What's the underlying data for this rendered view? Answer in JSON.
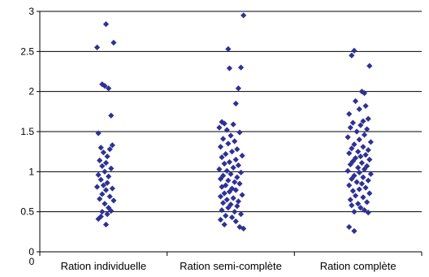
{
  "chart_data": {
    "type": "scatter",
    "title": "",
    "xlabel": "",
    "ylabel": "",
    "ylim": [
      0,
      3
    ],
    "y_ticks": [
      "0",
      "0.5",
      "1",
      "1.5",
      "2",
      "2.5",
      "3"
    ],
    "x_origin_label": "0",
    "categories": [
      "Ration individuelle",
      "Ration semi-complète",
      "Ration complète"
    ],
    "grid": true,
    "legend": "none",
    "marker_color": "#2E3192",
    "series": [
      {
        "category": "Ration individuelle",
        "points": [
          [
            1.02,
            2.84
          ],
          [
            1.08,
            2.61
          ],
          [
            0.95,
            2.55
          ],
          [
            0.99,
            2.09
          ],
          [
            1.01,
            2.07
          ],
          [
            1.04,
            2.04
          ],
          [
            1.06,
            1.7
          ],
          [
            0.96,
            1.48
          ],
          [
            1.07,
            1.33
          ],
          [
            0.98,
            1.3
          ],
          [
            1.05,
            1.28
          ],
          [
            1.0,
            1.24
          ],
          [
            1.03,
            1.19
          ],
          [
            0.97,
            1.14
          ],
          [
            1.02,
            1.11
          ],
          [
            0.99,
            1.07
          ],
          [
            1.06,
            1.04
          ],
          [
            1.01,
            1.0
          ],
          [
            0.96,
            0.96
          ],
          [
            1.04,
            0.94
          ],
          [
            0.98,
            0.9
          ],
          [
            1.03,
            0.86
          ],
          [
            1.0,
            0.83
          ],
          [
            0.95,
            0.81
          ],
          [
            1.07,
            0.79
          ],
          [
            1.02,
            0.77
          ],
          [
            0.99,
            0.72
          ],
          [
            1.05,
            0.69
          ],
          [
            0.97,
            0.66
          ],
          [
            1.08,
            0.64
          ],
          [
            1.01,
            0.6
          ],
          [
            1.04,
            0.55
          ],
          [
            1.06,
            0.51
          ],
          [
            0.99,
            0.5
          ],
          [
            1.03,
            0.47
          ],
          [
            0.98,
            0.44
          ],
          [
            0.96,
            0.41
          ],
          [
            1.02,
            0.34
          ]
        ]
      },
      {
        "category": "Ration semi-complète",
        "points": [
          [
            2.1,
            2.95
          ],
          [
            1.98,
            2.53
          ],
          [
            2.08,
            2.3
          ],
          [
            1.99,
            2.29
          ],
          [
            2.06,
            2.04
          ],
          [
            2.04,
            1.85
          ],
          [
            1.93,
            1.62
          ],
          [
            1.95,
            1.6
          ],
          [
            2.02,
            1.59
          ],
          [
            1.91,
            1.55
          ],
          [
            1.97,
            1.52
          ],
          [
            2.07,
            1.49
          ],
          [
            2.0,
            1.45
          ],
          [
            1.94,
            1.41
          ],
          [
            2.03,
            1.38
          ],
          [
            1.98,
            1.35
          ],
          [
            1.92,
            1.31
          ],
          [
            2.05,
            1.28
          ],
          [
            2.01,
            1.25
          ],
          [
            1.96,
            1.22
          ],
          [
            2.09,
            1.2
          ],
          [
            1.93,
            1.18
          ],
          [
            2.04,
            1.15
          ],
          [
            1.99,
            1.12
          ],
          [
            1.95,
            1.1
          ],
          [
            2.06,
            1.08
          ],
          [
            2.02,
            1.05
          ],
          [
            1.91,
            1.03
          ],
          [
            1.97,
            1.01
          ],
          [
            2.08,
            0.99
          ],
          [
            2.0,
            0.97
          ],
          [
            1.94,
            0.95
          ],
          [
            2.05,
            0.93
          ],
          [
            1.92,
            0.91
          ],
          [
            1.98,
            0.89
          ],
          [
            2.03,
            0.87
          ],
          [
            2.07,
            0.85
          ],
          [
            1.96,
            0.83
          ],
          [
            1.93,
            0.81
          ],
          [
            2.01,
            0.79
          ],
          [
            2.04,
            0.77
          ],
          [
            1.99,
            0.75
          ],
          [
            1.95,
            0.73
          ],
          [
            2.09,
            0.71
          ],
          [
            1.92,
            0.69
          ],
          [
            2.02,
            0.67
          ],
          [
            1.97,
            0.65
          ],
          [
            2.06,
            0.63
          ],
          [
            1.94,
            0.61
          ],
          [
            2.0,
            0.59
          ],
          [
            2.05,
            0.57
          ],
          [
            1.98,
            0.55
          ],
          [
            1.93,
            0.52
          ],
          [
            2.03,
            0.5
          ],
          [
            2.08,
            0.47
          ],
          [
            1.96,
            0.45
          ],
          [
            2.01,
            0.43
          ],
          [
            1.92,
            0.4
          ],
          [
            2.04,
            0.38
          ],
          [
            1.95,
            0.34
          ],
          [
            2.07,
            0.31
          ],
          [
            2.1,
            0.29
          ]
        ]
      },
      {
        "category": "Ration complète",
        "points": [
          [
            2.97,
            2.51
          ],
          [
            2.95,
            2.45
          ],
          [
            3.09,
            2.32
          ],
          [
            3.03,
            2.0
          ],
          [
            3.05,
            1.98
          ],
          [
            2.98,
            1.88
          ],
          [
            3.06,
            1.82
          ],
          [
            3.01,
            1.78
          ],
          [
            2.93,
            1.72
          ],
          [
            3.08,
            1.66
          ],
          [
            3.04,
            1.63
          ],
          [
            2.96,
            1.61
          ],
          [
            3.02,
            1.58
          ],
          [
            2.94,
            1.55
          ],
          [
            3.07,
            1.53
          ],
          [
            2.99,
            1.5
          ],
          [
            3.05,
            1.46
          ],
          [
            2.92,
            1.43
          ],
          [
            3.01,
            1.4
          ],
          [
            3.1,
            1.37
          ],
          [
            2.97,
            1.34
          ],
          [
            3.04,
            1.31
          ],
          [
            2.95,
            1.29
          ],
          [
            3.08,
            1.27
          ],
          [
            3.0,
            1.25
          ],
          [
            2.93,
            1.23
          ],
          [
            3.06,
            1.21
          ],
          [
            3.02,
            1.19
          ],
          [
            2.98,
            1.17
          ],
          [
            3.09,
            1.15
          ],
          [
            2.96,
            1.13
          ],
          [
            3.03,
            1.11
          ],
          [
            2.94,
            1.09
          ],
          [
            3.07,
            1.07
          ],
          [
            3.0,
            1.05
          ],
          [
            3.05,
            1.03
          ],
          [
            2.92,
            1.01
          ],
          [
            3.01,
            0.99
          ],
          [
            3.1,
            0.97
          ],
          [
            2.97,
            0.95
          ],
          [
            3.04,
            0.93
          ],
          [
            2.95,
            0.91
          ],
          [
            3.08,
            0.89
          ],
          [
            2.99,
            0.87
          ],
          [
            3.03,
            0.85
          ],
          [
            2.93,
            0.83
          ],
          [
            3.06,
            0.8
          ],
          [
            3.01,
            0.78
          ],
          [
            2.96,
            0.76
          ],
          [
            3.09,
            0.73
          ],
          [
            2.98,
            0.7
          ],
          [
            3.04,
            0.68
          ],
          [
            2.94,
            0.65
          ],
          [
            3.07,
            0.62
          ],
          [
            3.0,
            0.6
          ],
          [
            2.95,
            0.58
          ],
          [
            3.02,
            0.55
          ],
          [
            3.05,
            0.52
          ],
          [
            2.97,
            0.5
          ],
          [
            3.08,
            0.49
          ],
          [
            2.93,
            0.31
          ],
          [
            2.97,
            0.26
          ]
        ]
      }
    ]
  }
}
